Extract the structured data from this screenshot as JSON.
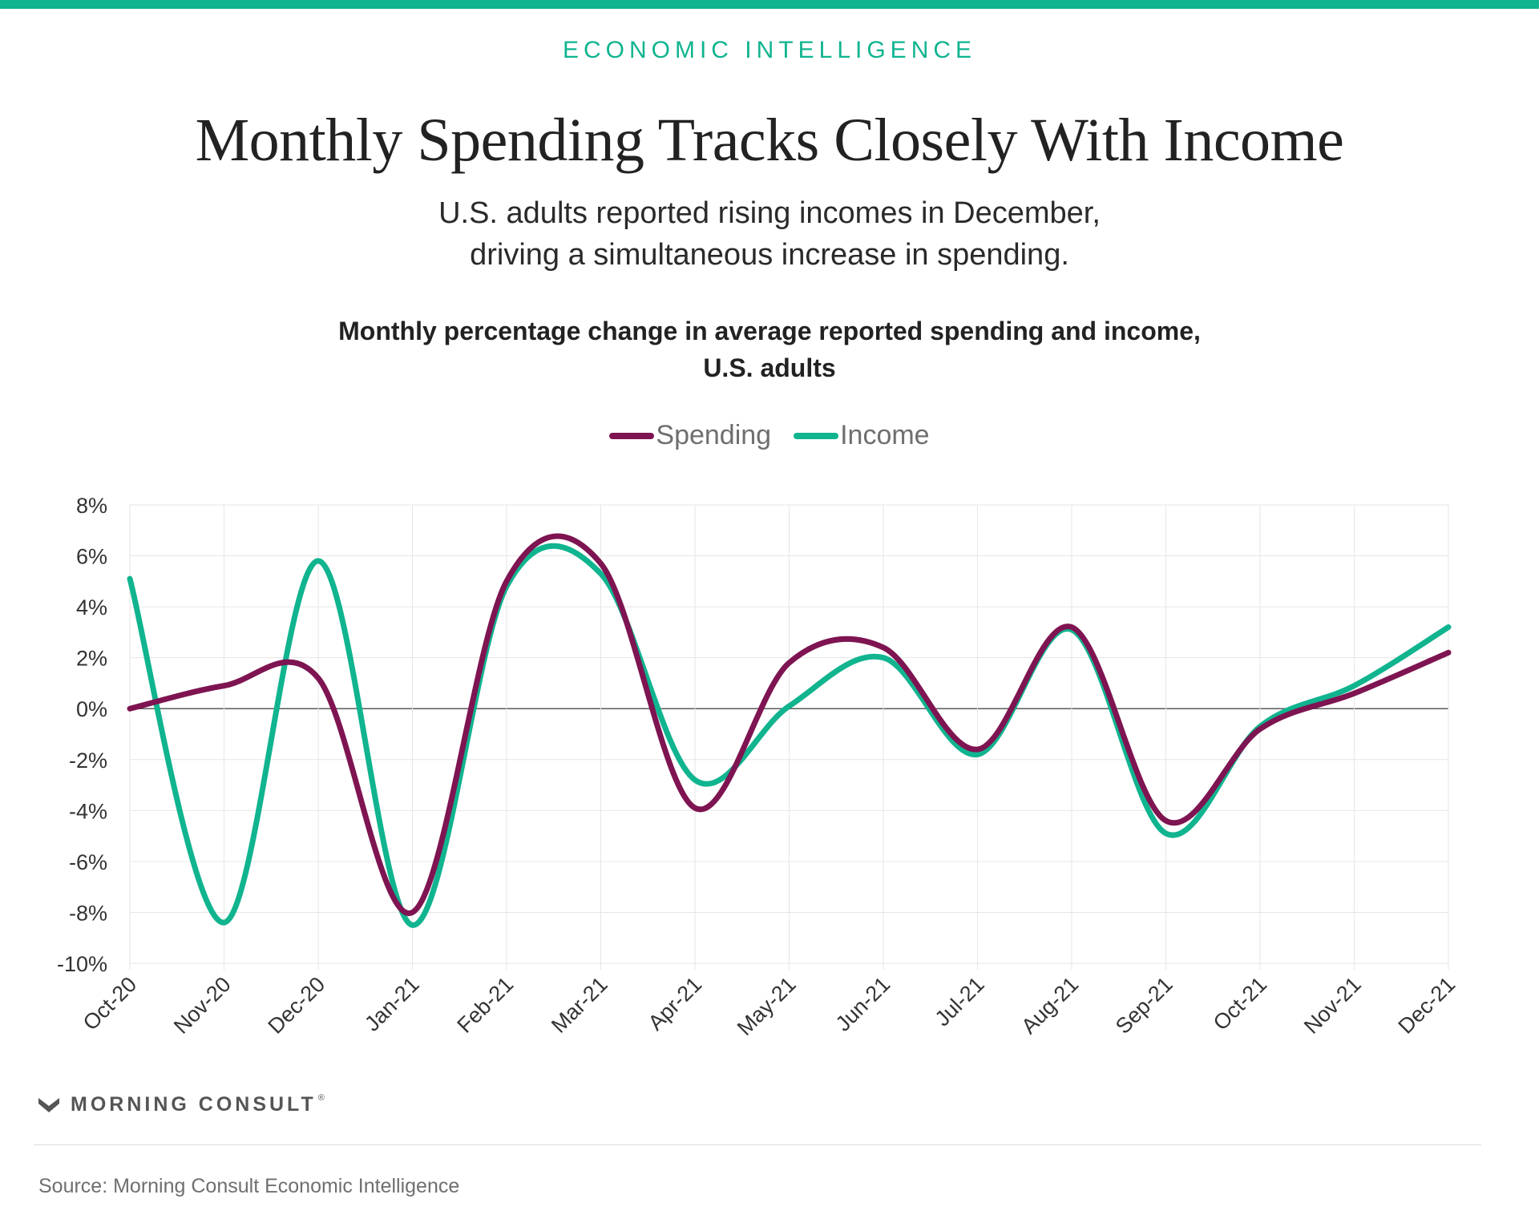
{
  "header": {
    "kicker": "ECONOMIC INTELLIGENCE",
    "title": "Monthly Spending Tracks Closely With Income",
    "subtitle_line1": "U.S. adults reported rising incomes in December,",
    "subtitle_line2": "driving a simultaneous increase in spending."
  },
  "footer": {
    "logo_text": "MORNING CONSULT",
    "logo_mark": "®",
    "source": "Source: Morning Consult Economic Intelligence"
  },
  "colors": {
    "accent": "#10b48f",
    "spending": "#7e1451",
    "income": "#10b48f"
  },
  "chart_data": {
    "type": "line",
    "title_line1": "Monthly percentage change in average reported spending and income,",
    "title_line2": "U.S. adults",
    "xlabel": "",
    "ylabel": "",
    "ylim": [
      -10,
      8
    ],
    "yticks": [
      8,
      6,
      4,
      2,
      0,
      -2,
      -4,
      -6,
      -8,
      -10
    ],
    "ytick_labels": [
      "8%",
      "6%",
      "4%",
      "2%",
      "0%",
      "-2%",
      "-4%",
      "-6%",
      "-8%",
      "-10%"
    ],
    "grid": true,
    "legend_position": "top-center",
    "categories": [
      "Oct-20",
      "Nov-20",
      "Dec-20",
      "Jan-21",
      "Feb-21",
      "Mar-21",
      "Apr-21",
      "May-21",
      "Jun-21",
      "Jul-21",
      "Aug-21",
      "Sep-21",
      "Oct-21",
      "Nov-21",
      "Dec-21"
    ],
    "series": [
      {
        "name": "Spending",
        "color": "#7e1451",
        "values": [
          0.0,
          0.9,
          1.2,
          -8.0,
          5.0,
          5.7,
          -3.9,
          1.8,
          2.4,
          -1.6,
          3.2,
          -4.4,
          -0.8,
          0.6,
          2.2
        ]
      },
      {
        "name": "Income",
        "color": "#10b48f",
        "values": [
          5.1,
          -8.4,
          5.8,
          -8.5,
          4.8,
          5.3,
          -2.8,
          0.1,
          2.0,
          -1.8,
          3.1,
          -4.9,
          -0.7,
          0.9,
          3.2
        ]
      }
    ]
  }
}
